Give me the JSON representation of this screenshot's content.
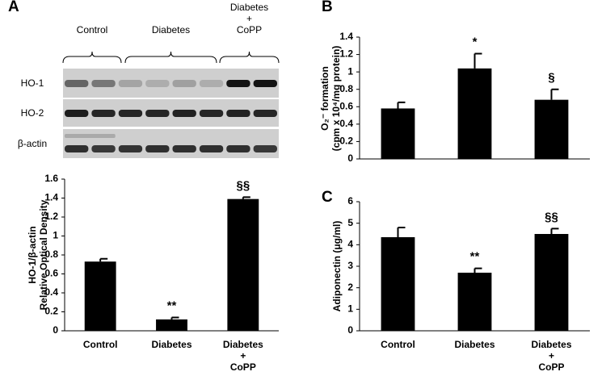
{
  "blot": {
    "groups": [
      "Control",
      "Diabetes",
      "Diabetes\n+\nCoPP"
    ],
    "rows": [
      "HO-1",
      "HO-2",
      "β-actin"
    ]
  },
  "chart_data": [
    {
      "type": "bar",
      "panel": "A",
      "categories": [
        "Control",
        "Diabetes",
        "Diabetes\n+\nCoPP"
      ],
      "values": [
        0.73,
        0.12,
        1.39
      ],
      "errors": [
        0.03,
        0.02,
        0.02
      ],
      "color": "#000000",
      "ylabel": [
        "HO-1/β-actin",
        "Relative Optical Density"
      ],
      "ylim": [
        0,
        1.6
      ],
      "yticks": [
        0,
        0.2,
        0.4,
        0.6,
        0.8,
        1,
        1.2,
        1.4,
        1.6
      ],
      "annotations": [
        {
          "category": "Diabetes",
          "text": "**"
        },
        {
          "category": "Diabetes\n+\nCoPP",
          "text": "§§"
        }
      ]
    },
    {
      "type": "bar",
      "panel": "B",
      "values": [
        0.58,
        1.04,
        0.68
      ],
      "errors": [
        0.07,
        0.17,
        0.12
      ],
      "color": "#000000",
      "ylabel": [
        "O₂⁻ formation",
        "(cpm x 10⁴/mg protein)"
      ],
      "ylim": [
        0,
        1.4
      ],
      "yticks": [
        0,
        0.2,
        0.4,
        0.6,
        0.8,
        1,
        1.2,
        1.4
      ],
      "annotations": [
        {
          "bar": 1,
          "text": "*"
        },
        {
          "bar": 2,
          "text": "§"
        }
      ]
    },
    {
      "type": "bar",
      "panel": "C",
      "categories": [
        "Control",
        "Diabetes",
        "Diabetes\n+\nCoPP"
      ],
      "values": [
        4.35,
        2.7,
        4.5
      ],
      "errors": [
        0.45,
        0.2,
        0.25
      ],
      "color": "#000000",
      "ylabel": [
        "Adiponectin (μg/ml)"
      ],
      "ylim": [
        0,
        6
      ],
      "yticks": [
        0,
        1,
        2,
        3,
        4,
        5,
        6
      ],
      "annotations": [
        {
          "category": "Diabetes",
          "text": "**"
        },
        {
          "category": "Diabetes\n+\nCoPP",
          "text": "§§"
        }
      ]
    }
  ]
}
